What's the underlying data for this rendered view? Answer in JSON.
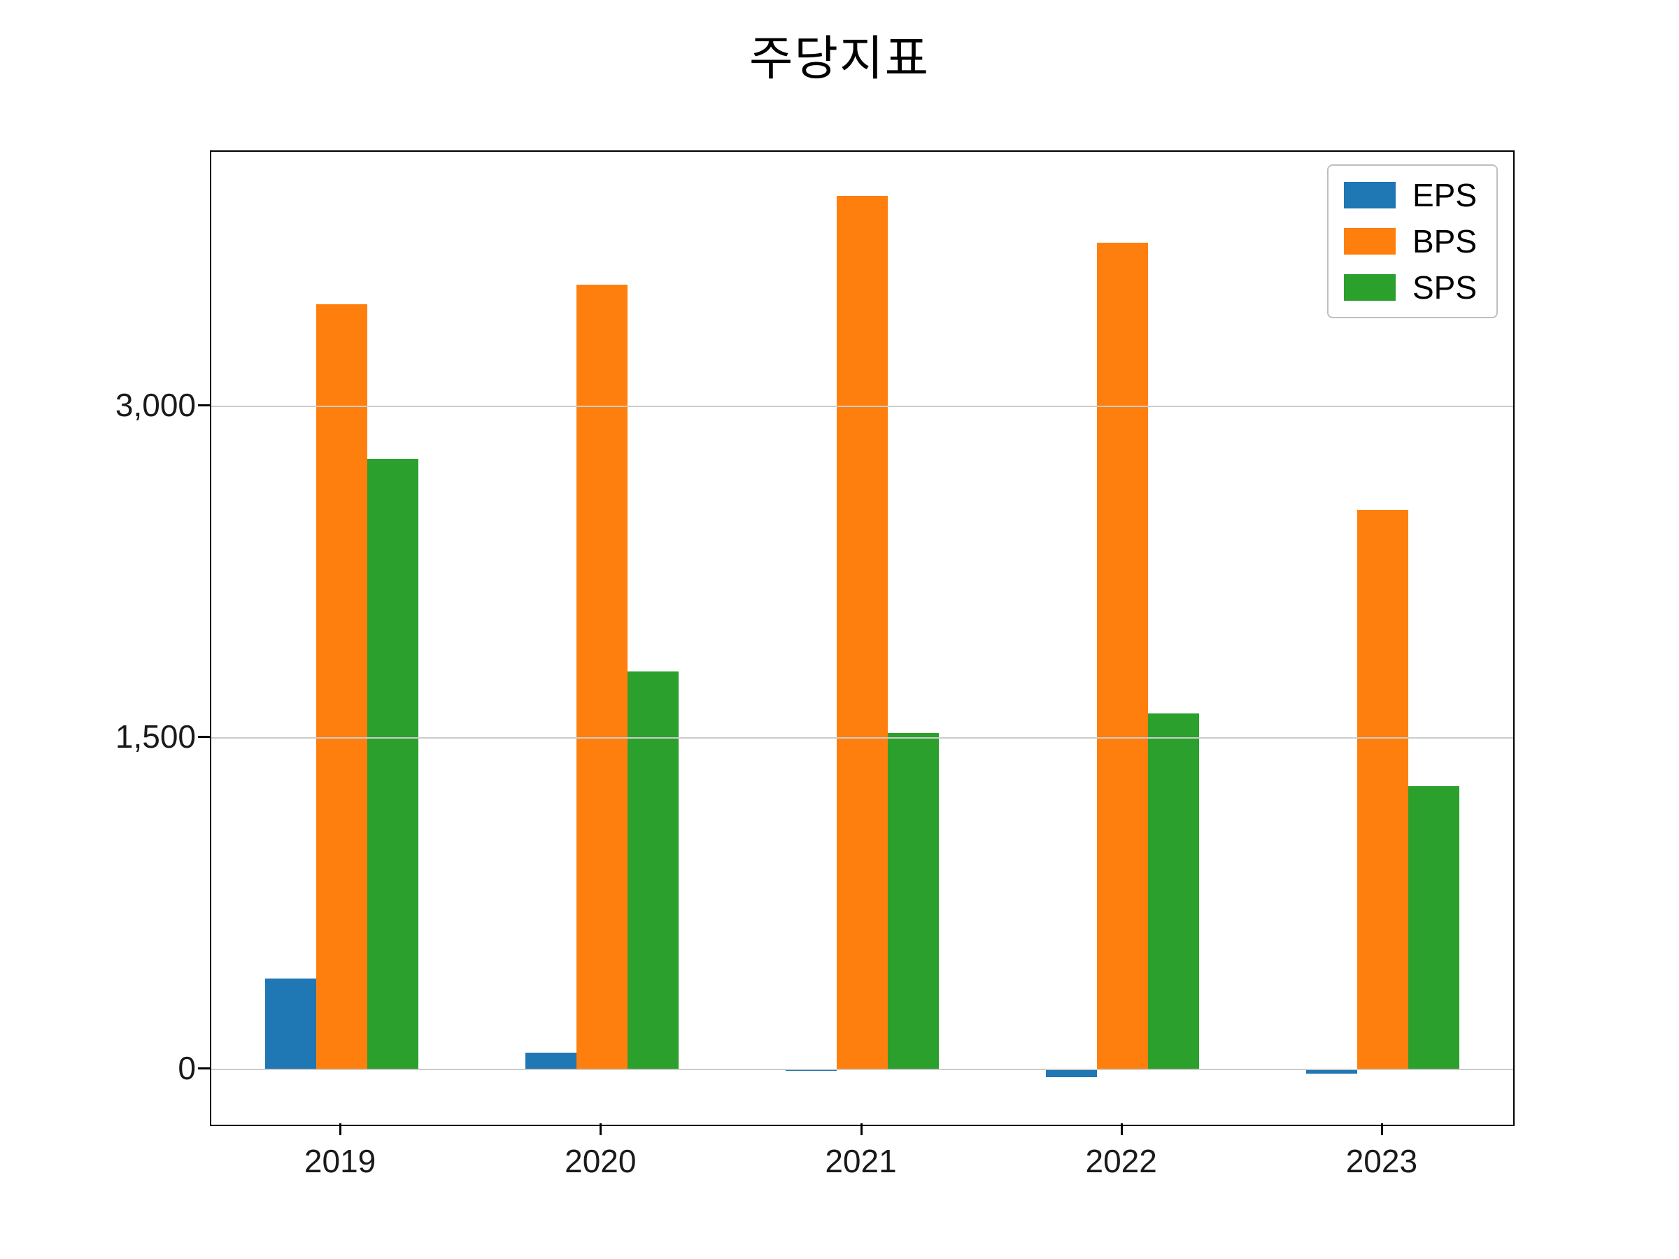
{
  "chart_data": {
    "type": "bar",
    "title": "주당지표",
    "categories": [
      "2019",
      "2020",
      "2021",
      "2022",
      "2023"
    ],
    "series": [
      {
        "name": "EPS",
        "color": "#1f77b4",
        "values": [
          410,
          75,
          -8,
          -35,
          -20
        ]
      },
      {
        "name": "BPS",
        "color": "#ff7f0e",
        "values": [
          3460,
          3550,
          3950,
          3740,
          2530
        ]
      },
      {
        "name": "SPS",
        "color": "#2ca02c",
        "values": [
          2760,
          1800,
          1520,
          1610,
          1280
        ]
      }
    ],
    "yticks": [
      {
        "value": 0,
        "label": "0"
      },
      {
        "value": 1500,
        "label": "1,500"
      },
      {
        "value": 3000,
        "label": "3,000"
      }
    ],
    "ylim": [
      -250,
      4150
    ],
    "xlabel": "",
    "ylabel": "",
    "grid": "horizontal",
    "legend_position": "upper right",
    "frame_color": "#000000",
    "grid_color": "#cccccc"
  }
}
